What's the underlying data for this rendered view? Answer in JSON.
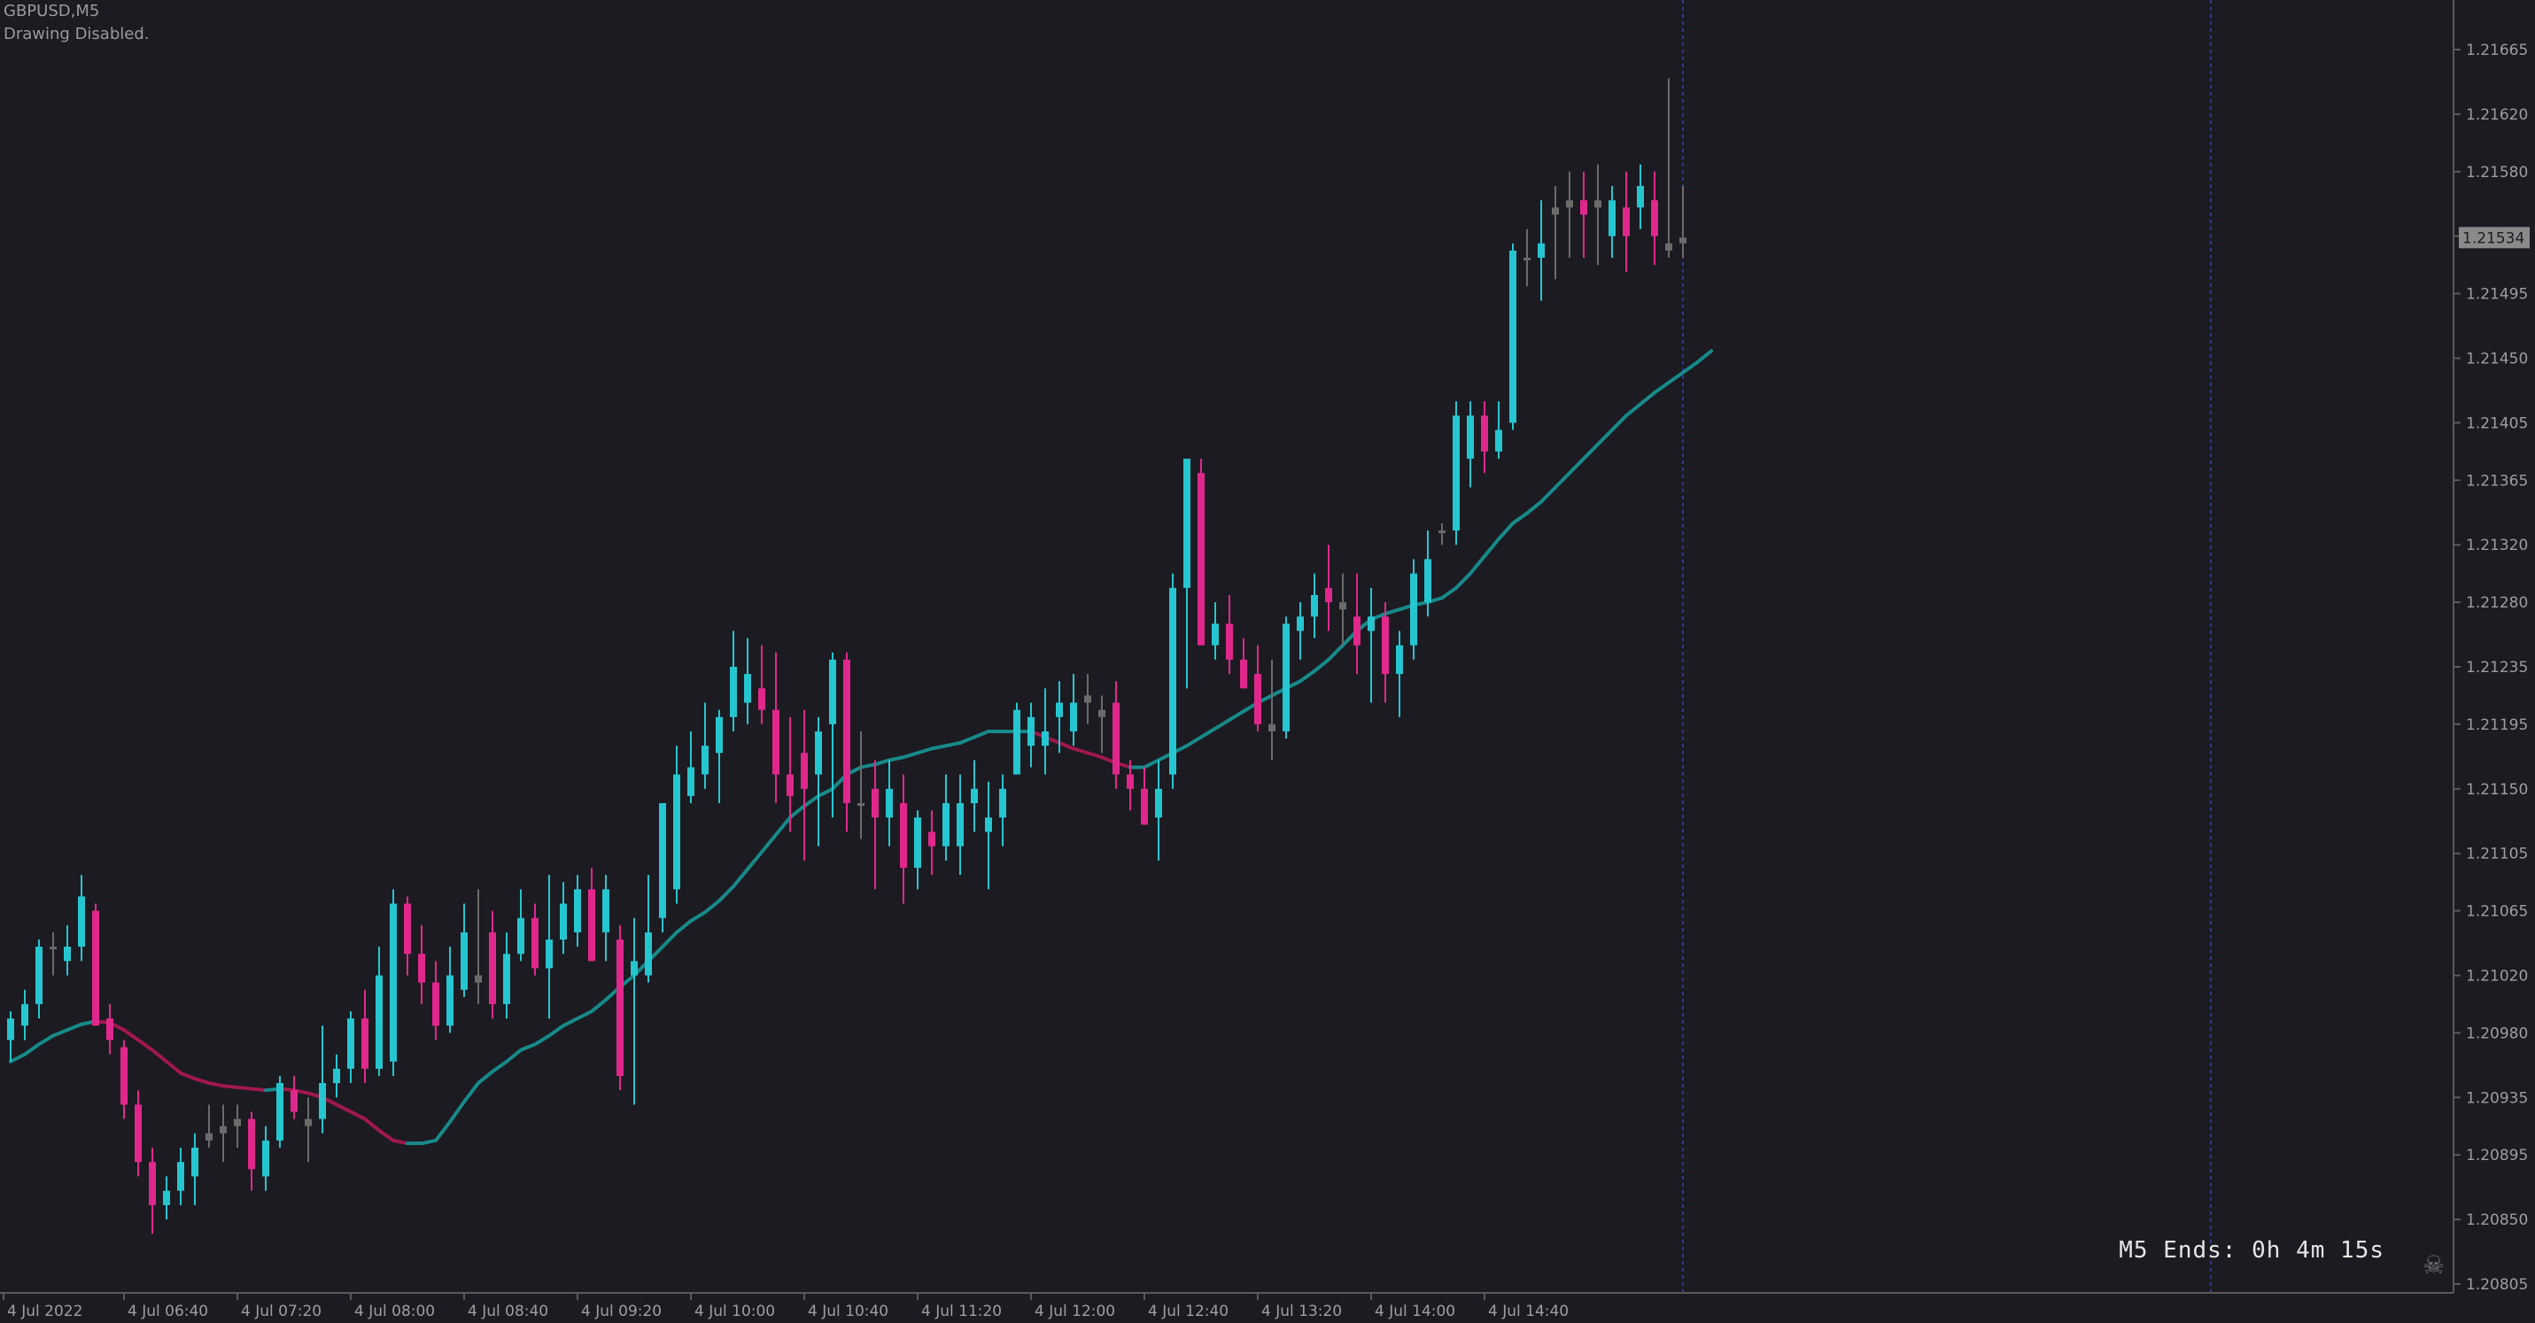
{
  "header": {
    "symbol": "GBPUSD,M5",
    "status": "Drawing Disabled."
  },
  "timer": "M5 Ends: 0h 4m 15s",
  "current_price": "1.21534",
  "colors": {
    "background": "#1c1b22",
    "bull": "#26c6d0",
    "bear": "#e0288c",
    "neutral": "#6b6b6b",
    "ma_up": "#178a8a",
    "ma_down": "#a0184e",
    "axis": "#5a5a5a",
    "text": "#9e9e9e",
    "vline": "#2a3a8a"
  },
  "icons": {
    "skull": "skull-crossbones-icon"
  },
  "chart_data": {
    "type": "candlestick",
    "symbol": "GBPUSD",
    "timeframe": "M5",
    "ylim": [
      1.20805,
      1.21665
    ],
    "y_ticks": [
      "1.21665",
      "1.21620",
      "1.21580",
      "1.21535",
      "1.21495",
      "1.21450",
      "1.21405",
      "1.21365",
      "1.21320",
      "1.21280",
      "1.21235",
      "1.21195",
      "1.21150",
      "1.21105",
      "1.21065",
      "1.21020",
      "1.20980",
      "1.20935",
      "1.20895",
      "1.20850",
      "1.20805"
    ],
    "x_ticks": [
      "4 Jul 2022",
      "4 Jul 06:40",
      "4 Jul 07:20",
      "4 Jul 08:00",
      "4 Jul 08:40",
      "4 Jul 09:20",
      "4 Jul 10:00",
      "4 Jul 10:40",
      "4 Jul 11:20",
      "4 Jul 12:00",
      "4 Jul 12:40",
      "4 Jul 13:20",
      "4 Jul 14:00",
      "4 Jul 14:40"
    ],
    "candles": [
      [
        1.20975,
        1.20995,
        1.2096,
        1.2099
      ],
      [
        1.20985,
        1.2101,
        1.20975,
        1.21
      ],
      [
        1.21,
        1.21045,
        1.2099,
        1.2104
      ],
      [
        1.2104,
        1.2105,
        1.2102,
        1.2104
      ],
      [
        1.2103,
        1.21055,
        1.2102,
        1.2104
      ],
      [
        1.2104,
        1.2109,
        1.2103,
        1.21075
      ],
      [
        1.21065,
        1.2107,
        1.2099,
        1.20985
      ],
      [
        1.2099,
        1.21,
        1.20965,
        1.20975
      ],
      [
        1.2097,
        1.20975,
        1.2092,
        1.2093
      ],
      [
        1.2093,
        1.2094,
        1.2088,
        1.2089
      ],
      [
        1.2089,
        1.209,
        1.2084,
        1.2086
      ],
      [
        1.2086,
        1.2088,
        1.2085,
        1.2087
      ],
      [
        1.2087,
        1.209,
        1.2086,
        1.2089
      ],
      [
        1.2088,
        1.2091,
        1.2086,
        1.209
      ],
      [
        1.20905,
        1.2093,
        1.209,
        1.2091
      ],
      [
        1.2091,
        1.2093,
        1.2089,
        1.20915
      ],
      [
        1.20915,
        1.2093,
        1.209,
        1.2092
      ],
      [
        1.2092,
        1.20925,
        1.2087,
        1.20885
      ],
      [
        1.2088,
        1.20915,
        1.2087,
        1.20905
      ],
      [
        1.20905,
        1.2095,
        1.209,
        1.20945
      ],
      [
        1.2094,
        1.2095,
        1.2092,
        1.20925
      ],
      [
        1.20915,
        1.20935,
        1.2089,
        1.2092
      ],
      [
        1.2092,
        1.20985,
        1.2091,
        1.20945
      ],
      [
        1.20945,
        1.20965,
        1.20935,
        1.20955
      ],
      [
        1.20955,
        1.20995,
        1.20945,
        1.2099
      ],
      [
        1.2099,
        1.2101,
        1.20945,
        1.20955
      ],
      [
        1.20955,
        1.2104,
        1.2095,
        1.2102
      ],
      [
        1.2096,
        1.2108,
        1.2095,
        1.2107
      ],
      [
        1.2107,
        1.21075,
        1.2102,
        1.21035
      ],
      [
        1.21035,
        1.21055,
        1.21,
        1.21015
      ],
      [
        1.21015,
        1.2103,
        1.20975,
        1.20985
      ],
      [
        1.20985,
        1.2104,
        1.2098,
        1.2102
      ],
      [
        1.2101,
        1.2107,
        1.21005,
        1.2105
      ],
      [
        1.2102,
        1.2108,
        1.21,
        1.21015
      ],
      [
        1.2105,
        1.21065,
        1.2099,
        1.21
      ],
      [
        1.21,
        1.2105,
        1.2099,
        1.21035
      ],
      [
        1.21035,
        1.2108,
        1.2103,
        1.2106
      ],
      [
        1.2106,
        1.2107,
        1.2102,
        1.21025
      ],
      [
        1.21025,
        1.2109,
        1.2099,
        1.21045
      ],
      [
        1.21045,
        1.21085,
        1.21035,
        1.2107
      ],
      [
        1.2105,
        1.2109,
        1.2104,
        1.2108
      ],
      [
        1.2108,
        1.21095,
        1.2103,
        1.2103
      ],
      [
        1.2105,
        1.2109,
        1.2103,
        1.2108
      ],
      [
        1.21045,
        1.21055,
        1.2094,
        1.2095
      ],
      [
        1.2102,
        1.2106,
        1.2093,
        1.2103
      ],
      [
        1.2102,
        1.2109,
        1.21015,
        1.2105
      ],
      [
        1.2106,
        1.2114,
        1.2105,
        1.2114
      ],
      [
        1.2108,
        1.2118,
        1.2107,
        1.2116
      ],
      [
        1.21145,
        1.2119,
        1.2114,
        1.21165
      ],
      [
        1.2116,
        1.2121,
        1.2115,
        1.2118
      ],
      [
        1.21175,
        1.21205,
        1.2114,
        1.212
      ],
      [
        1.212,
        1.2126,
        1.2119,
        1.21235
      ],
      [
        1.2121,
        1.21255,
        1.21195,
        1.2123
      ],
      [
        1.2122,
        1.2125,
        1.21195,
        1.21205
      ],
      [
        1.21205,
        1.21245,
        1.2114,
        1.2116
      ],
      [
        1.2116,
        1.212,
        1.2112,
        1.21145
      ],
      [
        1.21175,
        1.21205,
        1.211,
        1.2115
      ],
      [
        1.2116,
        1.212,
        1.2111,
        1.2119
      ],
      [
        1.21195,
        1.21245,
        1.2113,
        1.2124
      ],
      [
        1.2124,
        1.21245,
        1.2112,
        1.2114
      ],
      [
        1.2114,
        1.2119,
        1.21115,
        1.2114
      ],
      [
        1.2115,
        1.2117,
        1.2108,
        1.2113
      ],
      [
        1.2113,
        1.2117,
        1.2111,
        1.2115
      ],
      [
        1.2114,
        1.2116,
        1.2107,
        1.21095
      ],
      [
        1.21095,
        1.21135,
        1.2108,
        1.2113
      ],
      [
        1.2112,
        1.21135,
        1.2109,
        1.2111
      ],
      [
        1.2111,
        1.2116,
        1.211,
        1.2114
      ],
      [
        1.2111,
        1.2116,
        1.2109,
        1.2114
      ],
      [
        1.2114,
        1.2117,
        1.2112,
        1.2115
      ],
      [
        1.2112,
        1.21155,
        1.2108,
        1.2113
      ],
      [
        1.2113,
        1.2116,
        1.2111,
        1.2115
      ],
      [
        1.2116,
        1.2121,
        1.2116,
        1.21205
      ],
      [
        1.2118,
        1.2121,
        1.21165,
        1.212
      ],
      [
        1.2118,
        1.2122,
        1.2116,
        1.2119
      ],
      [
        1.212,
        1.21225,
        1.21175,
        1.2121
      ],
      [
        1.2119,
        1.2123,
        1.2118,
        1.2121
      ],
      [
        1.2121,
        1.2123,
        1.21195,
        1.21215
      ],
      [
        1.21205,
        1.21215,
        1.21175,
        1.212
      ],
      [
        1.2121,
        1.21225,
        1.2115,
        1.2116
      ],
      [
        1.2116,
        1.2117,
        1.21135,
        1.2115
      ],
      [
        1.2115,
        1.21165,
        1.21125,
        1.21125
      ],
      [
        1.2113,
        1.2117,
        1.211,
        1.2115
      ],
      [
        1.2116,
        1.213,
        1.2115,
        1.2129
      ],
      [
        1.2129,
        1.2138,
        1.2122,
        1.2138
      ],
      [
        1.2137,
        1.2138,
        1.2125,
        1.2125
      ],
      [
        1.2125,
        1.2128,
        1.2124,
        1.21265
      ],
      [
        1.21265,
        1.21285,
        1.2123,
        1.2124
      ],
      [
        1.2124,
        1.21255,
        1.2122,
        1.2122
      ],
      [
        1.2123,
        1.2125,
        1.2119,
        1.21195
      ],
      [
        1.21195,
        1.2124,
        1.2117,
        1.2119
      ],
      [
        1.2119,
        1.2127,
        1.21185,
        1.21265
      ],
      [
        1.2126,
        1.2128,
        1.2124,
        1.2127
      ],
      [
        1.2127,
        1.213,
        1.21255,
        1.21285
      ],
      [
        1.2129,
        1.2132,
        1.2126,
        1.2128
      ],
      [
        1.2128,
        1.213,
        1.2125,
        1.21275
      ],
      [
        1.2127,
        1.213,
        1.2123,
        1.2125
      ],
      [
        1.2126,
        1.2129,
        1.2121,
        1.2127
      ],
      [
        1.2127,
        1.2128,
        1.2121,
        1.2123
      ],
      [
        1.2123,
        1.2126,
        1.212,
        1.2125
      ],
      [
        1.2125,
        1.2131,
        1.2124,
        1.213
      ],
      [
        1.2128,
        1.2133,
        1.2127,
        1.2131
      ],
      [
        1.2133,
        1.21335,
        1.2132,
        1.2133
      ],
      [
        1.2133,
        1.2142,
        1.2132,
        1.2141
      ],
      [
        1.2138,
        1.2142,
        1.2136,
        1.2141
      ],
      [
        1.2141,
        1.2142,
        1.2137,
        1.21385
      ],
      [
        1.21385,
        1.2142,
        1.2138,
        1.214
      ],
      [
        1.21405,
        1.2153,
        1.214,
        1.21525
      ],
      [
        1.2152,
        1.2154,
        1.215,
        1.2152
      ],
      [
        1.2152,
        1.2156,
        1.2149,
        1.2153
      ],
      [
        1.2155,
        1.2157,
        1.21505,
        1.21555
      ],
      [
        1.21555,
        1.2158,
        1.2152,
        1.2156
      ],
      [
        1.2156,
        1.2158,
        1.2152,
        1.2155
      ],
      [
        1.2156,
        1.21585,
        1.21515,
        1.21555
      ],
      [
        1.21535,
        1.2157,
        1.2152,
        1.2156
      ],
      [
        1.21555,
        1.2158,
        1.2151,
        1.21535
      ],
      [
        1.21555,
        1.21585,
        1.2154,
        1.2157
      ],
      [
        1.2156,
        1.2158,
        1.21515,
        1.21535
      ],
      [
        1.21525,
        1.21645,
        1.2152,
        1.2153
      ],
      [
        1.2153,
        1.2157,
        1.2152,
        1.21534
      ]
    ],
    "moving_average": [
      1.2096,
      1.20965,
      1.20972,
      1.20978,
      1.20982,
      1.20986,
      1.20988,
      1.20987,
      1.20982,
      1.20975,
      1.20968,
      1.2096,
      1.20952,
      1.20948,
      1.20945,
      1.20943,
      1.20942,
      1.20941,
      1.2094,
      1.20941,
      1.2094,
      1.20938,
      1.20935,
      1.2093,
      1.20925,
      1.2092,
      1.20912,
      1.20905,
      1.20903,
      1.20903,
      1.20905,
      1.20918,
      1.20932,
      1.20945,
      1.20953,
      1.2096,
      1.20968,
      1.20972,
      1.20978,
      1.20985,
      1.2099,
      1.20995,
      1.21003,
      1.21012,
      1.2102,
      1.2103,
      1.2104,
      1.2105,
      1.21058,
      1.21064,
      1.21072,
      1.21082,
      1.21094,
      1.21106,
      1.21118,
      1.2113,
      1.21138,
      1.21145,
      1.2115,
      1.2116,
      1.21165,
      1.21167,
      1.2117,
      1.21172,
      1.21175,
      1.21178,
      1.2118,
      1.21182,
      1.21186,
      1.2119,
      1.2119,
      1.2119,
      1.2119,
      1.21186,
      1.21182,
      1.21178,
      1.21175,
      1.21172,
      1.21168,
      1.21165,
      1.21165,
      1.2117,
      1.21175,
      1.2118,
      1.21186,
      1.21192,
      1.21198,
      1.21204,
      1.2121,
      1.21215,
      1.2122,
      1.21225,
      1.21232,
      1.2124,
      1.2125,
      1.2126,
      1.21268,
      1.21272,
      1.21275,
      1.21278,
      1.2128,
      1.21283,
      1.2129,
      1.213,
      1.21312,
      1.21324,
      1.21335,
      1.21342,
      1.2135,
      1.2136,
      1.2137,
      1.2138,
      1.2139,
      1.214,
      1.2141,
      1.21418,
      1.21426,
      1.21433,
      1.2144,
      1.21447,
      1.21455
    ],
    "grid": false
  }
}
